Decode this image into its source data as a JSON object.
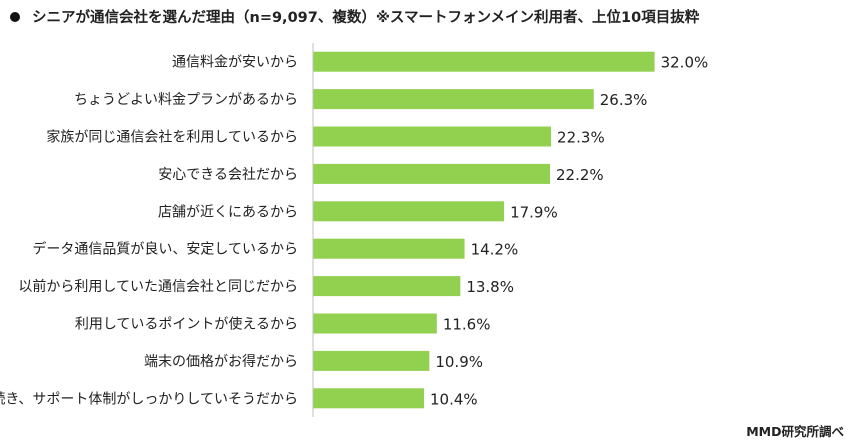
{
  "title": "シニアが通信会社を選んだ理由（n=9,097、複数）※スマートフォンメイン利用者、上位10項目抜粋",
  "credit": "MMD研究所調べ",
  "colors": {
    "bar": "#92d050",
    "axis": "#bfbfbf",
    "text": "#222222"
  },
  "chart_data": {
    "type": "bar",
    "orientation": "horizontal",
    "categories": [
      "通信料金が安いから",
      "ちょうどよい料金プランがあるから",
      "家族が同じ通信会社を利用しているから",
      "安心できる会社だから",
      "店舗が近くにあるから",
      "データ通信品質が良い、安定しているから",
      "以前から利用していた通信会社と同じだから",
      "利用しているポイントが使えるから",
      "端末の価格がお得だから",
      "手続き、サポート体制がしっかりしていそうだから"
    ],
    "values": [
      32.0,
      26.3,
      22.3,
      22.2,
      17.9,
      14.2,
      13.8,
      11.6,
      10.9,
      10.4
    ],
    "value_labels": [
      "32.0%",
      "26.3%",
      "22.3%",
      "22.2%",
      "17.9%",
      "14.2%",
      "13.8%",
      "11.6%",
      "10.9%",
      "10.4%"
    ],
    "xlim": [
      0,
      40
    ],
    "grid": false,
    "legend": "none"
  }
}
